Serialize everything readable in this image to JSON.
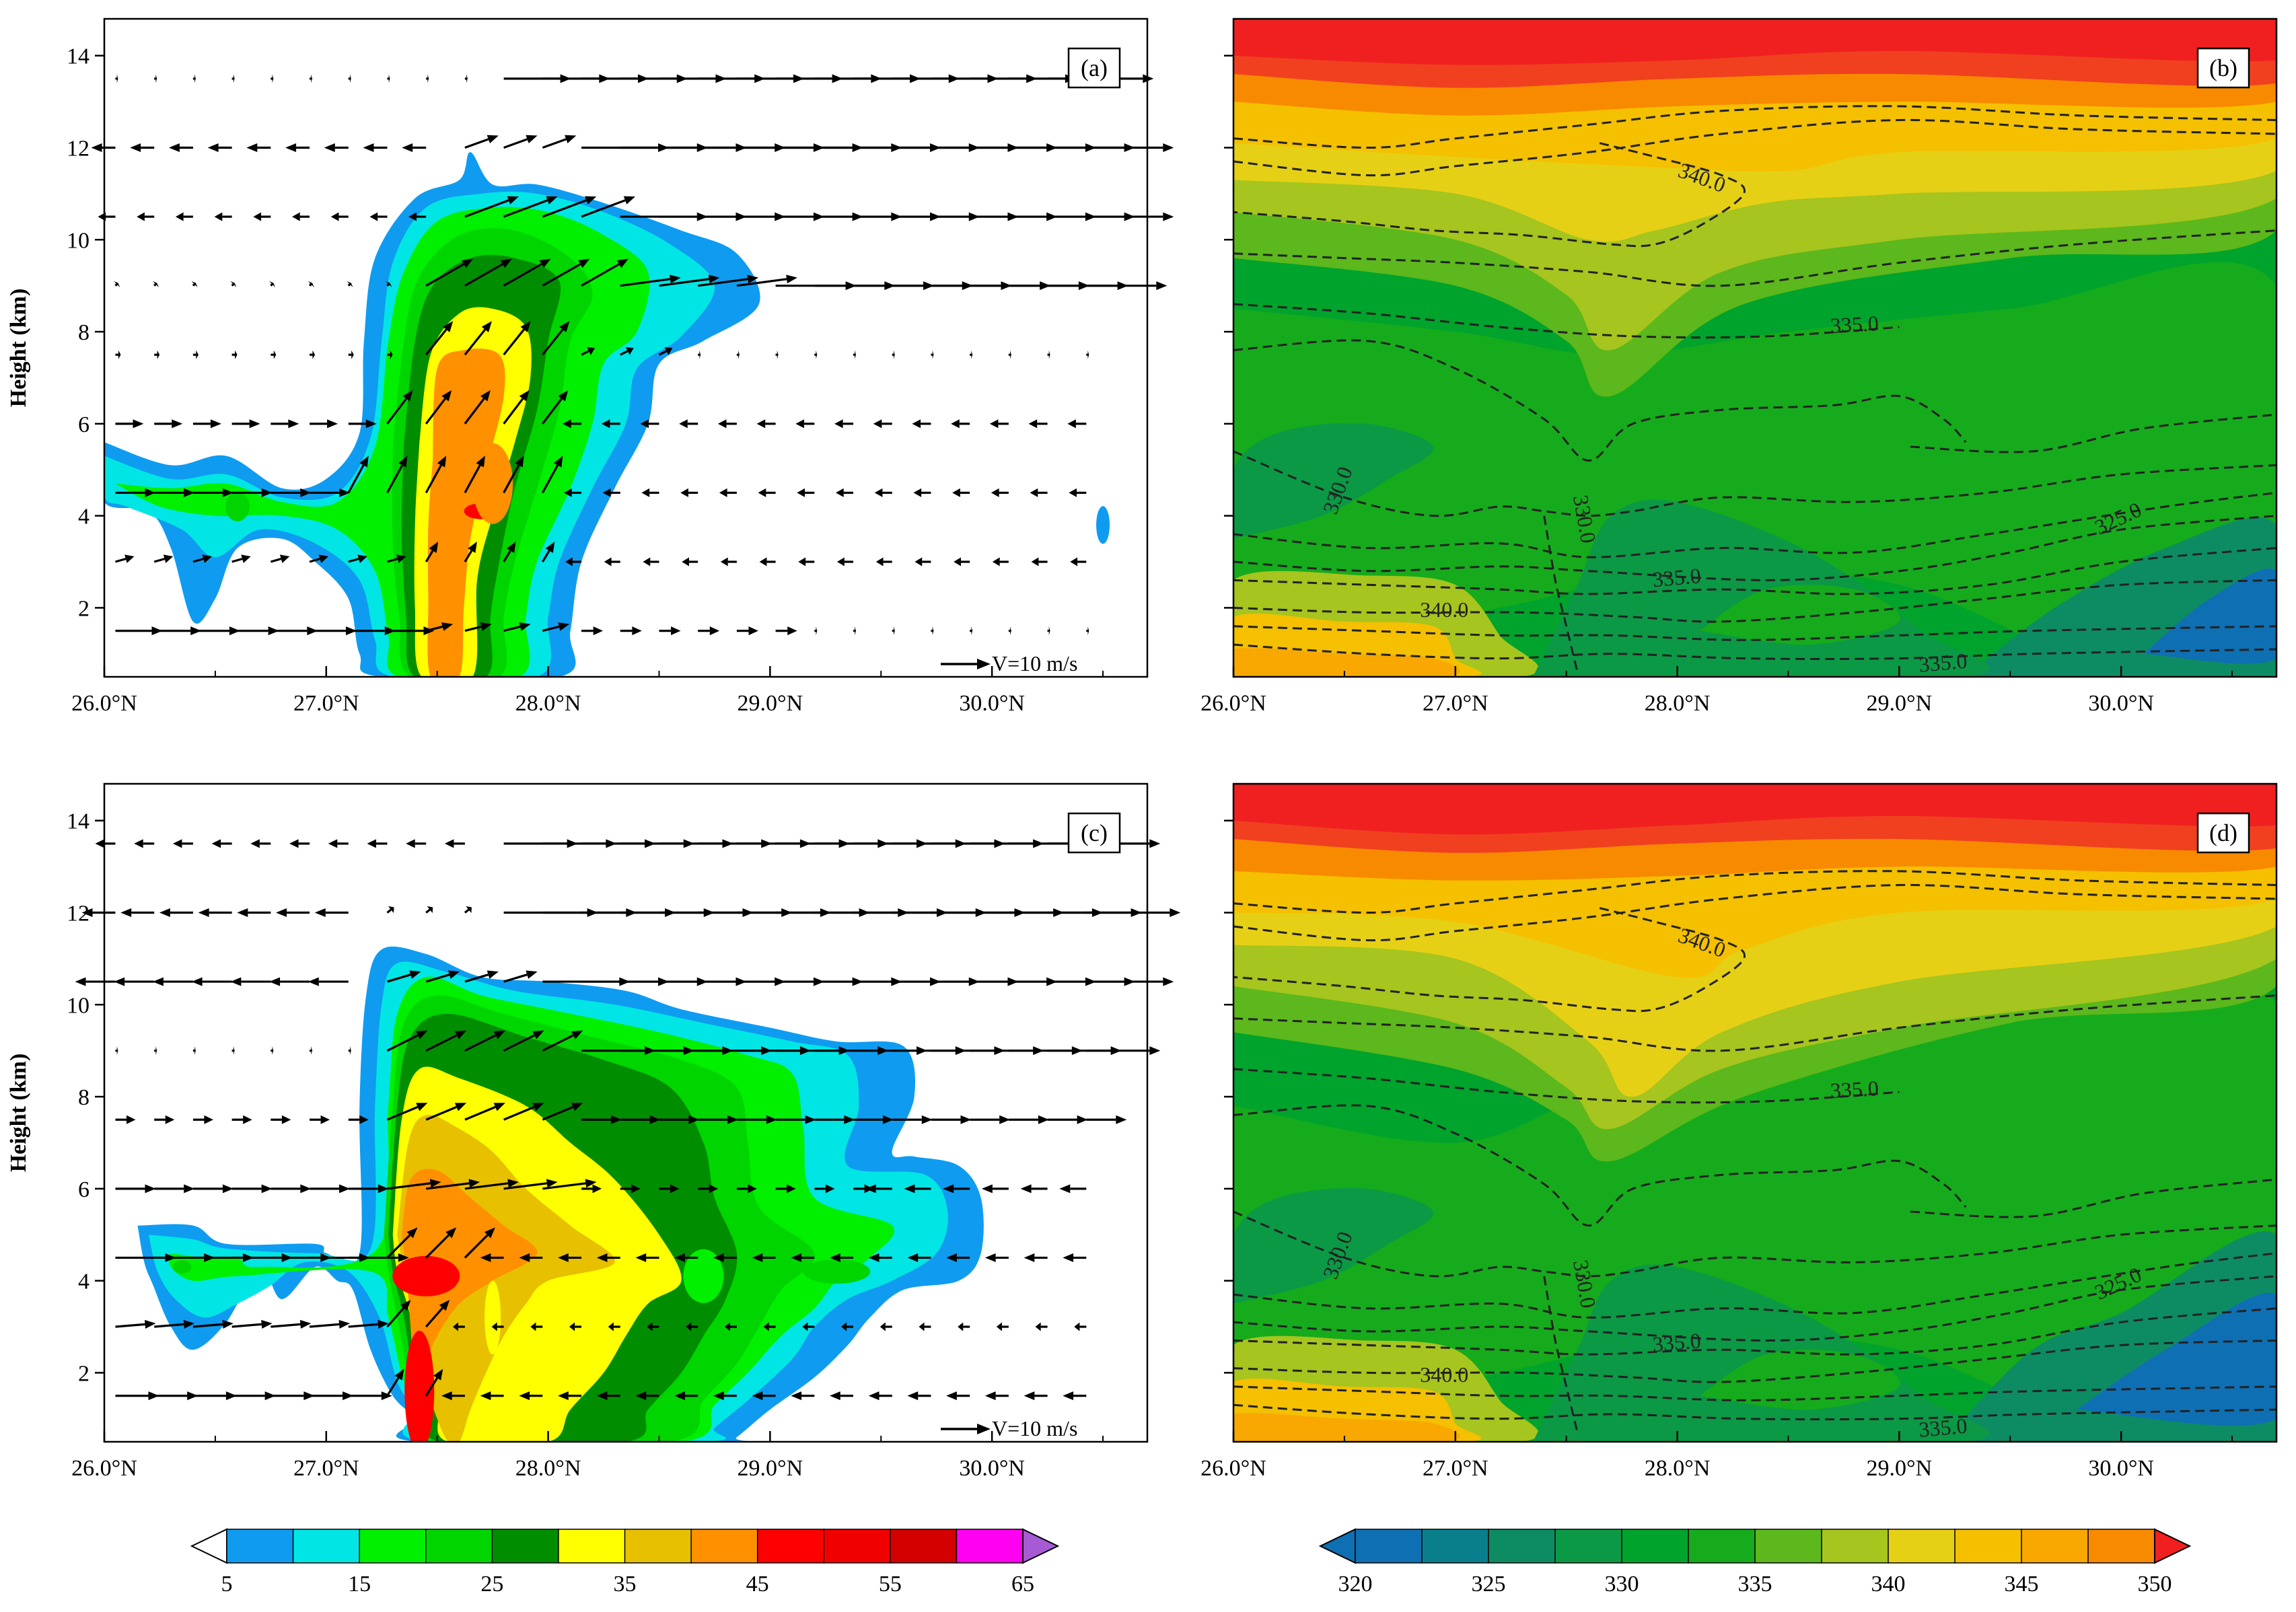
{
  "colors": {
    "reflectivity_levels": [
      "#ffffff",
      "#0f9cf0",
      "#02e5e5",
      "#00f000",
      "#00d500",
      "#008e00",
      "#ffff00",
      "#e7c000",
      "#ff9000",
      "#ff0000",
      "#f10000",
      "#d40000",
      "#ff00f0",
      "#780084",
      "#a65bd4"
    ],
    "theta_levels": [
      "#0f6fb3",
      "#0a7f8c",
      "#0d8c64",
      "#0b9945",
      "#00a32c",
      "#16ab1c",
      "#5cb81c",
      "#a6c51e",
      "#e6d015",
      "#f4c000",
      "#f8a800",
      "#f88a00",
      "#f86a10",
      "#f04020",
      "#f02020"
    ]
  },
  "chart_data": [
    {
      "panel_label": "(a)",
      "type": "heatmap",
      "overlay": "vector",
      "xlabel": "",
      "ylabel": "Height (km)",
      "xlim": [
        26.0,
        30.7
      ],
      "ylim": [
        0.5,
        14.8
      ],
      "x_ticks": [
        "26.0°N",
        "27.0°N",
        "28.0°N",
        "29.0°N",
        "30.0°N"
      ],
      "y_ticks": [
        "2",
        "4",
        "6",
        "8",
        "10",
        "12",
        "14"
      ],
      "ref_vector_label": "V=10 m/s",
      "echo_top_km": 11.8,
      "max_value_dbz": 48,
      "max_location": {
        "lat": 27.7,
        "height_km": 4.1
      },
      "wind_rows_km": [
        1.5,
        3.0,
        4.5,
        6.0,
        7.5,
        9.0,
        10.5,
        12.0,
        13.5
      ]
    },
    {
      "panel_label": "(b)",
      "type": "heatmap",
      "overlay": "contour",
      "xlabel": "",
      "ylabel": "",
      "xlim": [
        26.0,
        30.7
      ],
      "ylim": [
        0.5,
        14.8
      ],
      "x_ticks": [
        "26.0°N",
        "27.0°N",
        "28.0°N",
        "29.0°N",
        "30.0°N"
      ],
      "contour_labels": [
        "340.0",
        "335.0",
        "330.0",
        "330.0",
        "325.0",
        "335.0",
        "340.0",
        "335.0"
      ]
    },
    {
      "panel_label": "(c)",
      "type": "heatmap",
      "overlay": "vector",
      "xlabel": "",
      "ylabel": "Height (km)",
      "xlim": [
        26.0,
        30.7
      ],
      "ylim": [
        0.5,
        14.8
      ],
      "x_ticks": [
        "26.0°N",
        "27.0°N",
        "28.0°N",
        "29.0°N",
        "30.0°N"
      ],
      "y_ticks": [
        "2",
        "4",
        "6",
        "8",
        "10",
        "12",
        "14"
      ],
      "ref_vector_label": "V=10 m/s",
      "echo_top_km": 11.2,
      "max_value_dbz": 47,
      "max_location": {
        "lat": 27.4,
        "height_km": 4.1
      },
      "wind_rows_km": [
        1.5,
        3.0,
        4.5,
        6.0,
        7.5,
        9.0,
        10.5,
        12.0,
        13.5
      ]
    },
    {
      "panel_label": "(d)",
      "type": "heatmap",
      "overlay": "contour",
      "xlabel": "",
      "ylabel": "",
      "xlim": [
        26.0,
        30.7
      ],
      "ylim": [
        0.5,
        14.8
      ],
      "x_ticks": [
        "26.0°N",
        "27.0°N",
        "28.0°N",
        "29.0°N",
        "30.0°N"
      ],
      "contour_labels": [
        "340.0",
        "335.0",
        "330.0",
        "330.0",
        "325.0",
        "335.0",
        "340.0",
        "335.0"
      ]
    }
  ],
  "colorbars": {
    "left": {
      "labels": [
        "5",
        "15",
        "25",
        "35",
        "45",
        "55",
        "65"
      ],
      "levels": [
        5,
        10,
        15,
        20,
        25,
        30,
        35,
        40,
        45,
        50,
        55,
        60,
        65
      ]
    },
    "right": {
      "labels": [
        "320",
        "325",
        "330",
        "335",
        "340",
        "345",
        "350"
      ],
      "levels": [
        320,
        322.5,
        325,
        327.5,
        330,
        332.5,
        335,
        337.5,
        340,
        342.5,
        345,
        347.5,
        350
      ]
    }
  }
}
